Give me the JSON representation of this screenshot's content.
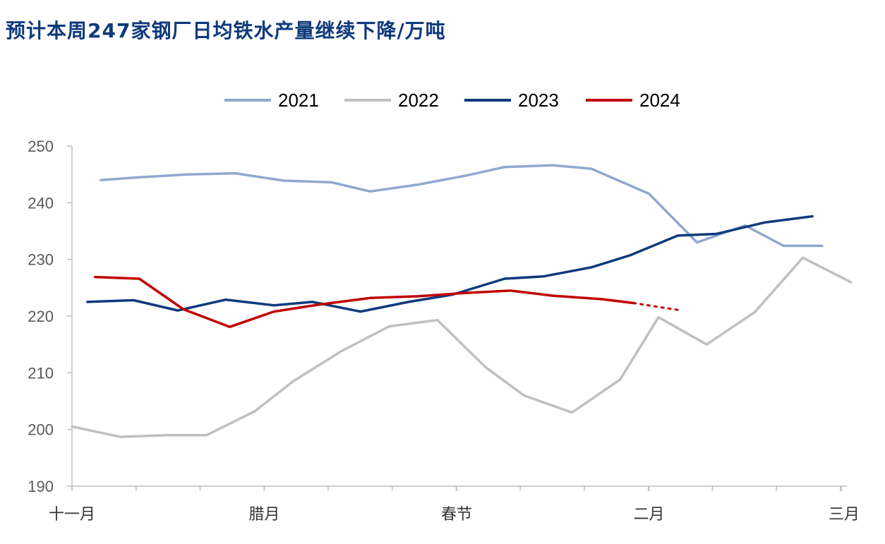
{
  "chart_data": {
    "type": "line",
    "title": "预计本周247家钢厂日均铁水产量继续下降/万吨",
    "xlabel": "",
    "ylabel": "",
    "ylim": [
      190,
      250
    ],
    "yticks": [
      190,
      200,
      210,
      220,
      230,
      240,
      250
    ],
    "xlim": [
      0,
      40
    ],
    "xticks": [
      {
        "label": "十一月",
        "x": 0
      },
      {
        "label": "腊月",
        "x": 10
      },
      {
        "label": "春节",
        "x": 20
      },
      {
        "label": "二月",
        "x": 30
      },
      {
        "label": "三月",
        "x": 40
      }
    ],
    "legend_position": "top",
    "grid": false,
    "series": [
      {
        "name": "2021",
        "color": "#8ea9cf",
        "x": [
          1.5,
          3.5,
          6,
          8.5,
          11,
          13.5,
          15.5,
          18,
          20.5,
          22.5,
          25,
          27,
          30,
          32.5,
          35,
          37,
          39
        ],
        "values": [
          244,
          244.5,
          245,
          245.2,
          243.9,
          243.6,
          242,
          243.2,
          244.8,
          246.3,
          246.6,
          246,
          241.6,
          233,
          236,
          232.4,
          232.4
        ]
      },
      {
        "name": "2022",
        "color": "#c0c0c0",
        "x": [
          0,
          2.5,
          5,
          7,
          9.5,
          11.5,
          14,
          16.5,
          19,
          21.5,
          23.5,
          26,
          28.5,
          30.5,
          33,
          35.5,
          38,
          40.5
        ],
        "values": [
          200.5,
          198.7,
          199,
          199,
          203.2,
          208.5,
          213.8,
          218.2,
          219.3,
          211,
          206,
          203,
          208.8,
          219.8,
          215,
          220.7,
          230.3,
          226
        ]
      },
      {
        "name": "2023",
        "color": "#0e3a7c",
        "x": [
          0.8,
          3.2,
          5.5,
          8,
          10.5,
          12.5,
          15,
          17.5,
          19.8,
          22.5,
          24.5,
          27,
          29,
          31.5,
          33.5,
          36,
          38.5
        ],
        "values": [
          222.5,
          222.8,
          221,
          222.9,
          221.9,
          222.5,
          220.8,
          222.5,
          223.8,
          226.6,
          227,
          228.6,
          230.7,
          234.2,
          234.5,
          236.5,
          237.6
        ]
      },
      {
        "name": "2024",
        "color": "#c00000",
        "x": [
          1.2,
          3.5,
          5.8,
          8.2,
          10.5,
          12.8,
          15.5,
          18,
          20.5,
          22.8,
          25,
          27.5,
          29.2
        ],
        "values": [
          226.9,
          226.6,
          221.2,
          218.1,
          220.8,
          222,
          223.2,
          223.5,
          224.1,
          224.5,
          223.6,
          223,
          222.3
        ]
      }
    ],
    "forecast": {
      "series": "2024",
      "color": "#c00000",
      "style": "dotted",
      "x": [
        29.2,
        31.5
      ],
      "values": [
        222.3,
        221.1
      ]
    }
  }
}
